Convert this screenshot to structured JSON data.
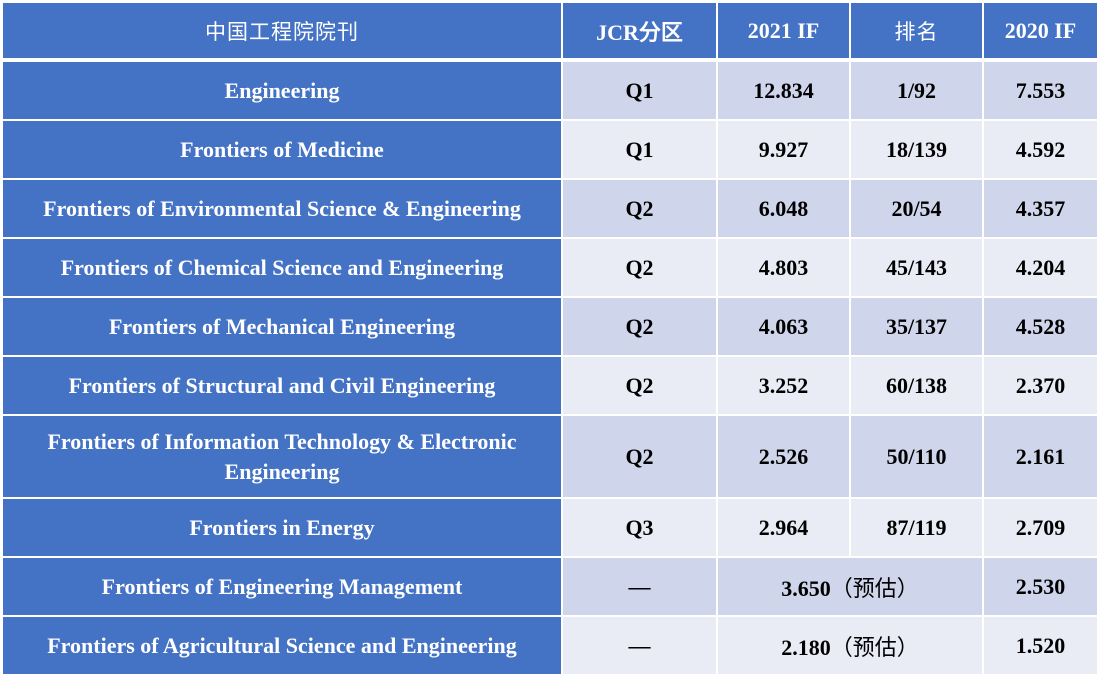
{
  "header": {
    "journal": "中国工程院院刊",
    "jcr": "JCR分区",
    "if2021": "2021 IF",
    "rank": "排名",
    "if2020": "2020 IF"
  },
  "rows": [
    {
      "journal": "Engineering",
      "jcr": "Q1",
      "if2021": "12.834",
      "rank": "1/92",
      "if2020": "7.553"
    },
    {
      "journal": "Frontiers of Medicine",
      "jcr": "Q1",
      "if2021": "9.927",
      "rank": "18/139",
      "if2020": "4.592"
    },
    {
      "journal": "Frontiers of Environmental Science & Engineering",
      "jcr": "Q2",
      "if2021": "6.048",
      "rank": "20/54",
      "if2020": "4.357"
    },
    {
      "journal": "Frontiers of Chemical Science and Engineering",
      "jcr": "Q2",
      "if2021": "4.803",
      "rank": "45/143",
      "if2020": "4.204"
    },
    {
      "journal": "Frontiers of Mechanical Engineering",
      "jcr": "Q2",
      "if2021": "4.063",
      "rank": "35/137",
      "if2020": "4.528"
    },
    {
      "journal": "Frontiers of Structural and Civil Engineering",
      "jcr": "Q2",
      "if2021": "3.252",
      "rank": "60/138",
      "if2020": "2.370"
    },
    {
      "journal": "Frontiers of Information Technology & Electronic Engineering",
      "jcr": "Q2",
      "if2021": "2.526",
      "rank": "50/110",
      "if2020": "2.161"
    },
    {
      "journal": "Frontiers in Energy",
      "jcr": "Q3",
      "if2021": "2.964",
      "rank": "87/119",
      "if2020": "2.709"
    },
    {
      "journal": "Frontiers of Engineering Management",
      "jcr": "—",
      "estimate_value": "3.650",
      "estimate_note": "（预估）",
      "if2020": "2.530"
    },
    {
      "journal": "Frontiers of Agricultural Science and Engineering",
      "jcr": "—",
      "estimate_value": "2.180",
      "estimate_note": "（预估）",
      "if2020": "1.520"
    }
  ],
  "colors": {
    "header_blue": "#4472C4",
    "row_light": "#CFD5EA",
    "row_lighter": "#E9EBF5"
  }
}
